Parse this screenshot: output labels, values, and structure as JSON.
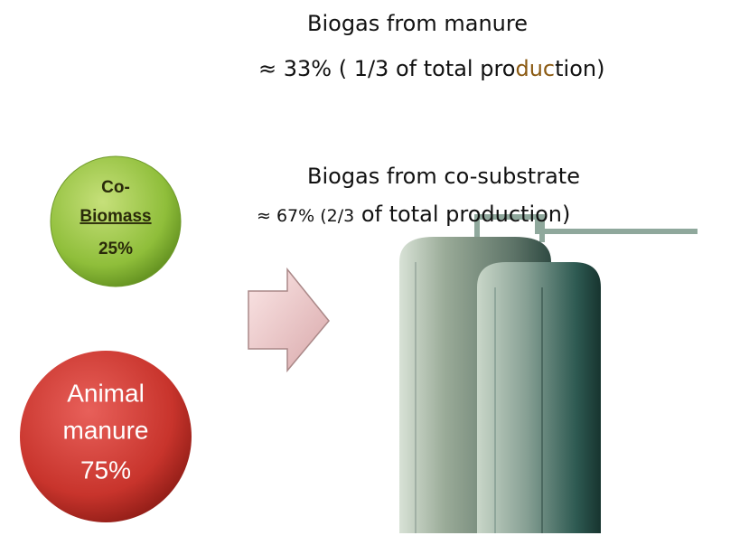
{
  "top_text": {
    "line1": "Biogas from manure",
    "line2_parts": [
      "≈ 33% ( 1/3 of total pro",
      "duc",
      "tion)"
    ]
  },
  "co_text": {
    "line1": "Biogas from co-substrate",
    "line2_parts": [
      "≈ 67% (2/3",
      " of total production)"
    ]
  },
  "co_biomass": {
    "label_lines": [
      "Co-",
      "Biomass"
    ],
    "share": "25%"
  },
  "animal_manure": {
    "label_lines": [
      "Animal",
      "manure"
    ],
    "share": "75%"
  }
}
